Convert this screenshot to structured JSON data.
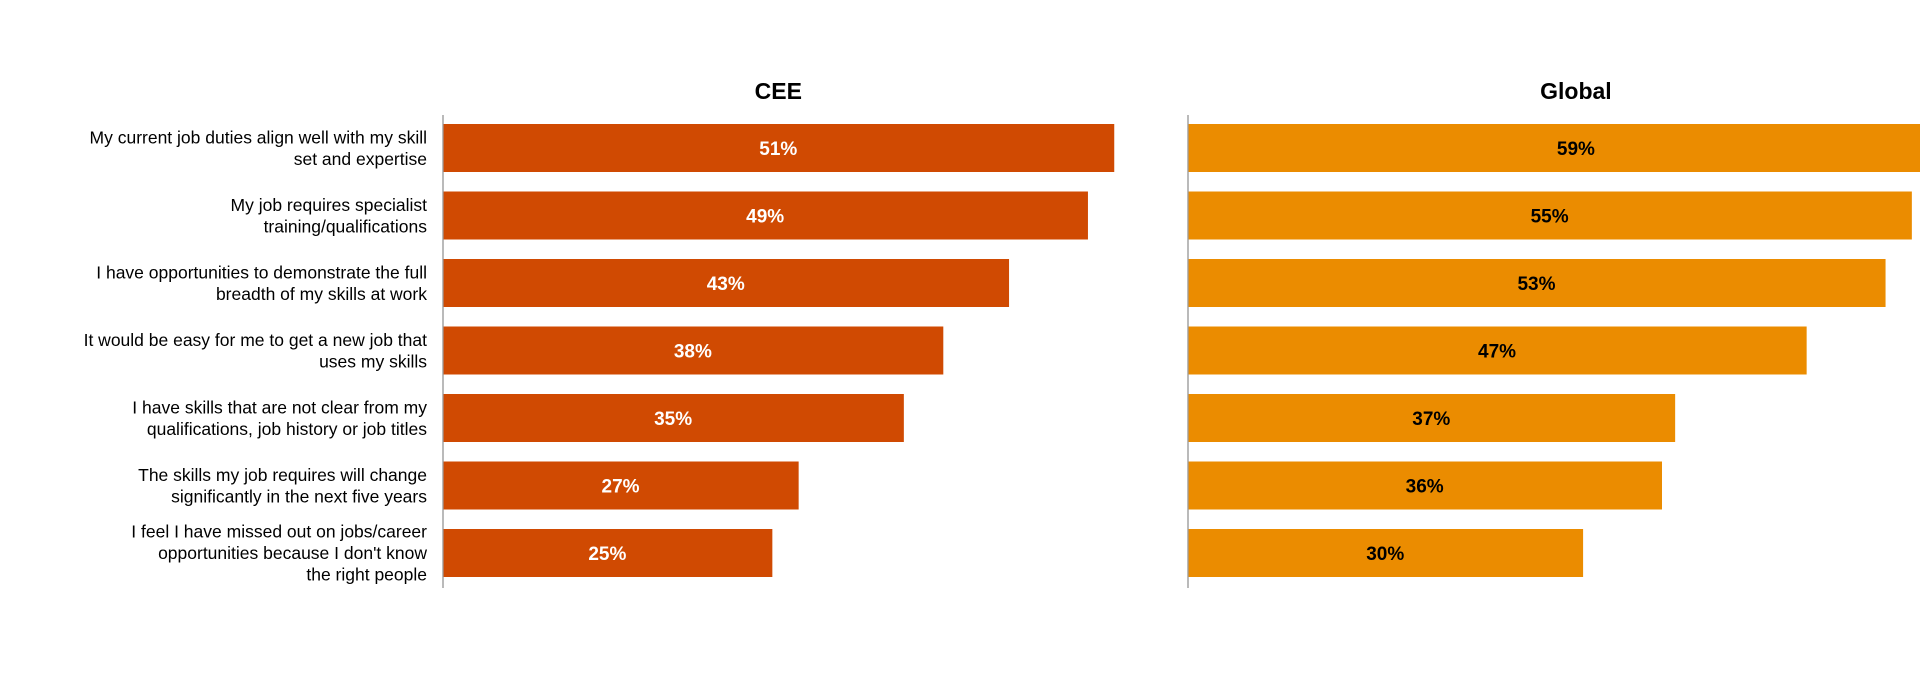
{
  "chart_data": {
    "type": "bar",
    "orientation": "horizontal",
    "categories": [
      "My current job duties align well with my skill set and expertise",
      "My job requires specialist training/qualifications",
      "I have opportunities to demonstrate the full breadth of my skills at work",
      "It would be easy for me to get a new job that uses my skills",
      "I have skills that are not clear from my qualifications, job history or job titles",
      "The skills my job requires will change significantly in the next five years",
      "I feel I have missed out on jobs/career opportunities because I don't know the right people"
    ],
    "category_lines": [
      [
        "My current job duties align well with my skill",
        "set and expertise"
      ],
      [
        "My job requires specialist",
        "training/qualifications"
      ],
      [
        "I have opportunities to demonstrate the full",
        "breadth of my skills at work"
      ],
      [
        "It would be easy for me to get a new job that",
        "uses my skills"
      ],
      [
        "I have skills that are not clear from my",
        "qualifications, job history or job titles"
      ],
      [
        "The skills my job requires will change",
        "significantly in the next five years"
      ],
      [
        "I feel I have missed out on jobs/career",
        "opportunities because I don't know",
        "the right people"
      ]
    ],
    "series": [
      {
        "name": "CEE",
        "values": [
          51,
          49,
          43,
          38,
          35,
          27,
          25
        ],
        "labels": [
          "51%",
          "49%",
          "43%",
          "38%",
          "35%",
          "27%",
          "25%"
        ],
        "color": "#D04A02",
        "label_color": "#FFFFFF"
      },
      {
        "name": "Global",
        "values": [
          59,
          55,
          53,
          47,
          37,
          36,
          30
        ],
        "labels": [
          "59%",
          "55%",
          "53%",
          "47%",
          "37%",
          "36%",
          "30%"
        ],
        "color": "#EB8C00",
        "label_color": "#000000"
      }
    ],
    "unit": "%",
    "grid": false,
    "legend": "none"
  }
}
